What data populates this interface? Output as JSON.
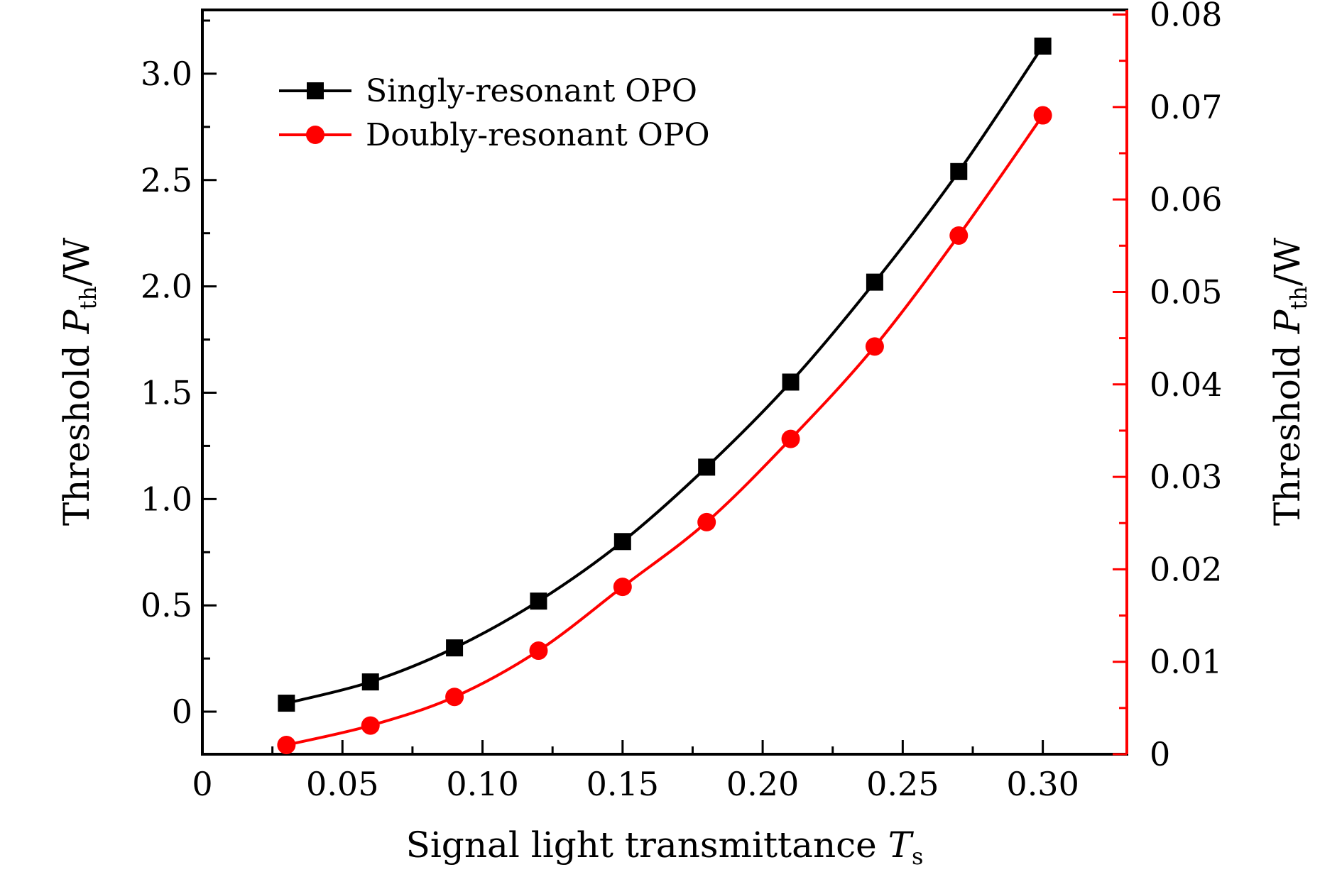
{
  "chart_data": {
    "type": "line",
    "x": [
      0.03,
      0.06,
      0.09,
      0.12,
      0.15,
      0.18,
      0.21,
      0.24,
      0.27,
      0.3
    ],
    "xlim": [
      0,
      0.33
    ],
    "xticks": [
      0,
      0.05,
      0.1,
      0.15,
      0.2,
      0.25,
      0.3
    ],
    "xtick_labels": [
      "0",
      "0.05",
      "0.10",
      "0.15",
      "0.20",
      "0.25",
      "0.30"
    ],
    "xlabel": {
      "text": "Signal light transmittance ",
      "var": "T",
      "sub": "s"
    },
    "left_axis": {
      "ylim": [
        -0.2,
        3.3
      ],
      "ticks": [
        0,
        0.5,
        1.0,
        1.5,
        2.0,
        2.5,
        3.0
      ],
      "tick_labels": [
        "0",
        "0.5",
        "1.0",
        "1.5",
        "2.0",
        "2.5",
        "3.0"
      ],
      "label": {
        "text": "Threshold ",
        "var": "P",
        "sub": "th",
        "unit": "/W"
      },
      "color": "#000000"
    },
    "right_axis": {
      "ylim": [
        0,
        0.0805
      ],
      "ticks": [
        0,
        0.01,
        0.02,
        0.03,
        0.04,
        0.05,
        0.06,
        0.07,
        0.08
      ],
      "tick_labels": [
        "0",
        "0.01",
        "0.02",
        "0.03",
        "0.04",
        "0.05",
        "0.06",
        "0.07",
        "0.08"
      ],
      "label": {
        "text": "Threshold ",
        "var": "P",
        "sub": "th",
        "unit": "/W"
      },
      "color": "#ff0000"
    },
    "series": [
      {
        "name": "Singly-resonant OPO",
        "axis": "left",
        "color": "#000000",
        "marker": "square",
        "values": [
          0.04,
          0.14,
          0.3,
          0.52,
          0.8,
          1.15,
          1.55,
          2.02,
          2.54,
          3.13
        ]
      },
      {
        "name": "Doubly-resonant OPO",
        "axis": "right",
        "color": "#ff0000",
        "marker": "circle",
        "values": [
          0.001,
          0.0031,
          0.0062,
          0.0112,
          0.0181,
          0.0251,
          0.0341,
          0.0441,
          0.0561,
          0.0691
        ]
      }
    ],
    "legend_position": "top-left"
  }
}
